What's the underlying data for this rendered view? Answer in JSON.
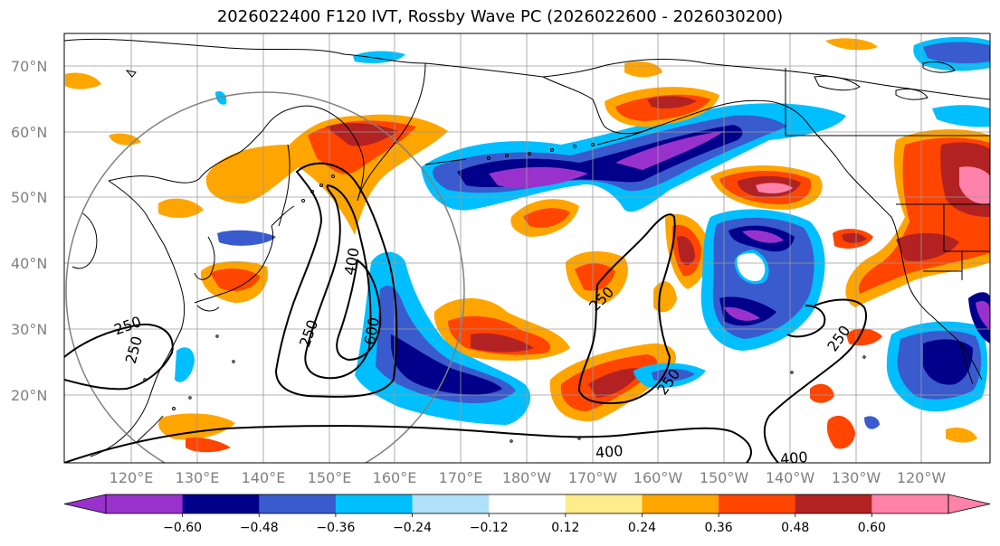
{
  "title": "2026022400 F120 IVT, Rossby Wave PC (2026022600 - 2026030200)",
  "lat_labels": [
    "70°N",
    "60°N",
    "50°N",
    "40°N",
    "30°N",
    "20°N"
  ],
  "lon_labels": [
    "120°E",
    "130°E",
    "140°E",
    "150°E",
    "160°E",
    "170°E",
    "180°W",
    "170°W",
    "160°W",
    "150°W",
    "140°W",
    "130°W",
    "120°W"
  ],
  "contour_labels": [
    "250",
    "400",
    "600",
    "250",
    "250",
    "250",
    "250",
    "400",
    "400",
    "250"
  ],
  "colorbar": {
    "ticks": [
      "−0.60",
      "−0.48",
      "−0.36",
      "−0.24",
      "−0.12",
      "0.12",
      "0.24",
      "0.36",
      "0.48",
      "0.60"
    ],
    "colors": [
      "#9932cc",
      "#00008b",
      "#3a5bcd",
      "#00bfff",
      "#b0e0fa",
      "#ffffff",
      "#ffec8b",
      "#ffa500",
      "#ff4500",
      "#b22222",
      "#ff82ab"
    ]
  },
  "palette": {
    "purple": "#9932cc",
    "navy": "#00008b",
    "royal": "#3a5bcd",
    "sky": "#00bfff",
    "pale_blue": "#b0e0fa",
    "yellow": "#ffec8b",
    "orange": "#ffa500",
    "orangered": "#ff4500",
    "firebrick": "#b22222",
    "pink": "#ff82ab"
  }
}
